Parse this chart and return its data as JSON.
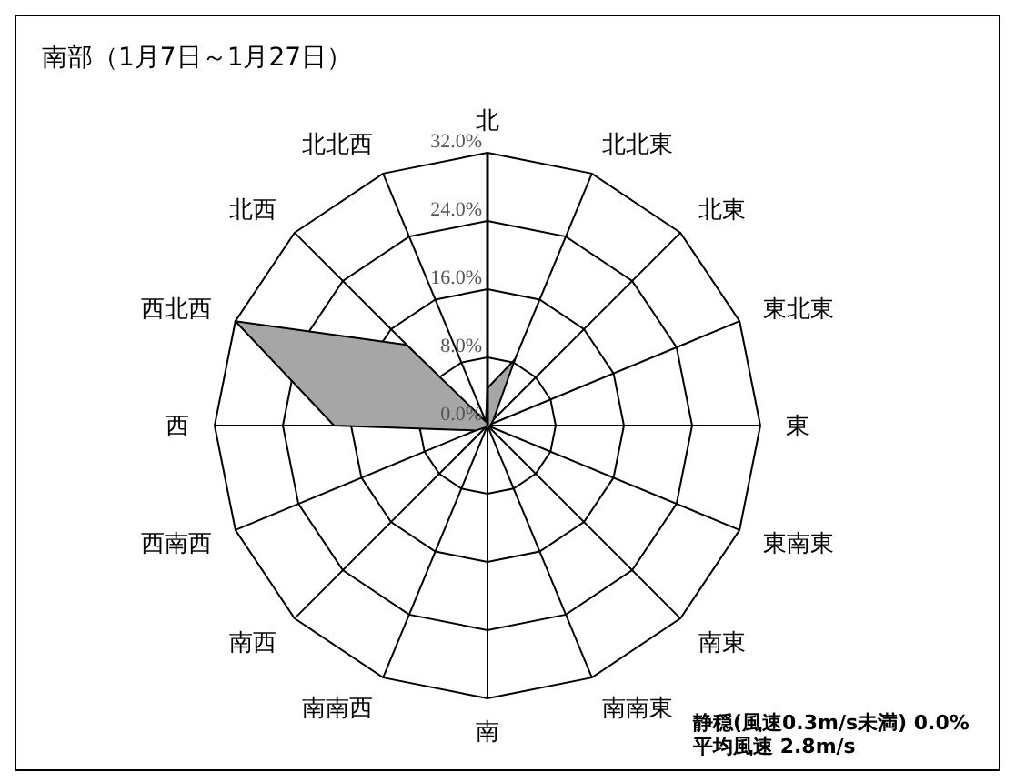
{
  "chart_data": {
    "type": "radar",
    "title": "南部（1月7日～1月27日）",
    "categories": [
      "北",
      "北北東",
      "北東",
      "東北東",
      "東",
      "東南東",
      "南東",
      "南南東",
      "南",
      "南南西",
      "南西",
      "西南西",
      "西",
      "西北西",
      "北西",
      "北北西"
    ],
    "series": [
      {
        "color": "#a6a6a6",
        "values": [
          4.4,
          8.4,
          1.0,
          0.5,
          0.3,
          0.3,
          0.3,
          0.3,
          0.3,
          0.3,
          0.3,
          1.5,
          18.0,
          32.0,
          13.4,
          0.5
        ]
      }
    ],
    "ylim": [
      0,
      32
    ],
    "yticks": [
      {
        "value": 0,
        "label": "0.0%"
      },
      {
        "value": 8,
        "label": "8.0%"
      },
      {
        "value": 16,
        "label": "16.0%"
      },
      {
        "value": 24,
        "label": "24.0%"
      },
      {
        "value": 32,
        "label": "32.0%"
      }
    ],
    "grid": true,
    "legend": false,
    "marker": "none",
    "annotations": [
      "静穏(風速0.3m/s未満) 0.0%",
      "平均風速 2.8m/s"
    ]
  }
}
